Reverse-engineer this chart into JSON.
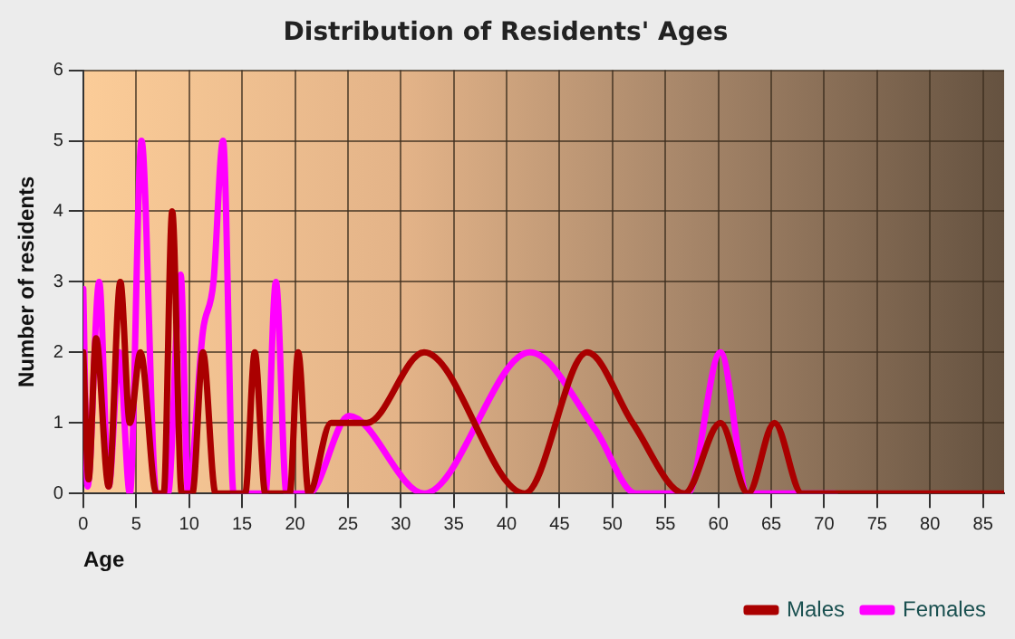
{
  "chart_data": {
    "type": "line",
    "title": "Distribution of Residents' Ages",
    "xlabel": "Age",
    "ylabel": "Number of residents",
    "xlim": [
      0,
      87
    ],
    "xticks": [
      0,
      5,
      10,
      15,
      20,
      25,
      30,
      35,
      40,
      45,
      50,
      55,
      60,
      65,
      70,
      75,
      80,
      85
    ],
    "ylim": [
      0,
      6
    ],
    "yticks": [
      0,
      1,
      2,
      3,
      4,
      5,
      6
    ],
    "grid": true,
    "legend": "bottom right",
    "marker": "none",
    "line_style": "solid",
    "series": [
      {
        "name": "Males",
        "color": "#aa0000",
        "x": [
          0,
          0.5,
          1.2,
          2.4,
          3.5,
          4.4,
          5.4,
          6.9,
          7.6,
          8.4,
          9.3,
          10.3,
          11.3,
          12.5,
          14,
          15.3,
          16.2,
          17.2,
          19.5,
          20.3,
          21.3,
          23.4,
          26.8,
          32.2,
          41.7,
          47.6,
          51.9,
          56.8,
          60.2,
          62.8,
          65.3,
          67.9,
          75,
          87
        ],
        "values": [
          2,
          0.2,
          2.2,
          0.1,
          3,
          1,
          2,
          0,
          0,
          4,
          0,
          0,
          2,
          0,
          0,
          0,
          2,
          0,
          0,
          2,
          0,
          1,
          1,
          2,
          0,
          2,
          1,
          0,
          1,
          0,
          1,
          0,
          0,
          0
        ]
      },
      {
        "name": "Females",
        "color": "#ff00ff",
        "x": [
          0,
          0.4,
          1.5,
          2.4,
          3.4,
          4.4,
          5.5,
          6.9,
          8.0,
          9.2,
          9.9,
          11.3,
          12.3,
          13.2,
          14.2,
          17.2,
          18.2,
          19.2,
          21.3,
          25.1,
          32.2,
          42.2,
          48.4,
          52.2,
          57.1,
          60.2,
          62.8,
          71
        ],
        "values": [
          2.9,
          0.1,
          3,
          0.1,
          2,
          0,
          5,
          0,
          0,
          3.1,
          0,
          2.3,
          3,
          5,
          0,
          0,
          3,
          0,
          0,
          1.1,
          0,
          2,
          0.9,
          0,
          0,
          2,
          0,
          0
        ]
      }
    ]
  }
}
